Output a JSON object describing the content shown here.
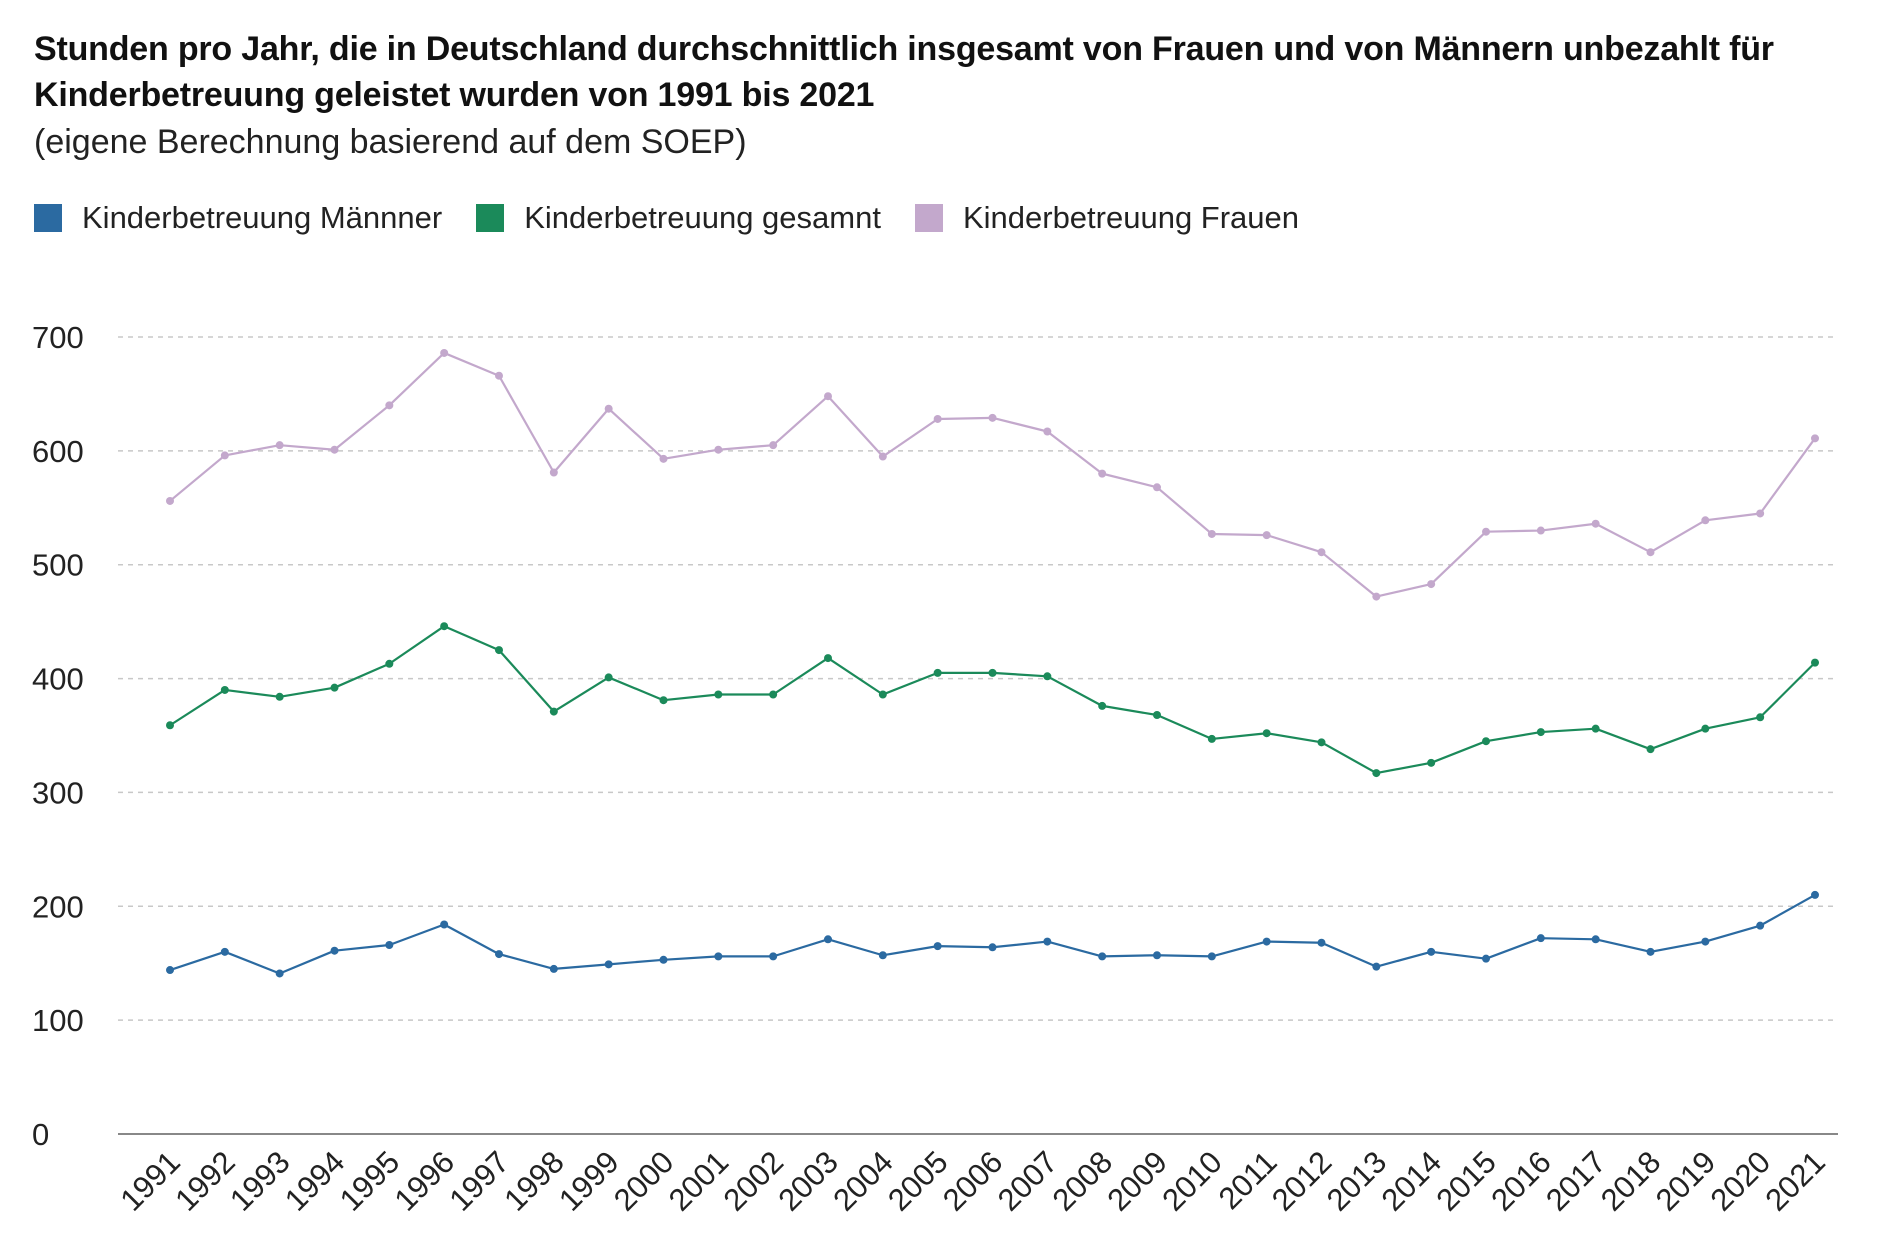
{
  "title": "Stunden pro Jahr, die in Deutschland durchschnittlich insgesamt von Frauen und von Männern unbezahlt für Kinderbetreuung geleistet wurden von 1991 bis 2021",
  "subtitle": "(eigene Berechnung basierend auf dem SOEP)",
  "colors": {
    "maenner": "#2b6aa1",
    "gesamt": "#1b8a5a",
    "frauen": "#c3a8cc",
    "grid": "#c8c8c8",
    "axis": "#888888"
  },
  "legend": [
    {
      "label": "Kinderbetreuung Männner",
      "color": "#2b6aa1"
    },
    {
      "label": "Kinderbetreuung gesamnt",
      "color": "#1b8a5a"
    },
    {
      "label": "Kinderbetreuung Frauen",
      "color": "#c3a8cc"
    }
  ],
  "chart_data": {
    "type": "line",
    "title": "Stunden pro Jahr, die in Deutschland durchschnittlich insgesamt von Frauen und von Männern unbezahlt für Kinderbetreuung geleistet wurden von 1991 bis 2021",
    "subtitle": "(eigene Berechnung basierend auf dem SOEP)",
    "xlabel": "",
    "ylabel": "",
    "ylim": [
      0,
      700
    ],
    "yticks": [
      0,
      100,
      200,
      300,
      400,
      500,
      600,
      700
    ],
    "grid": true,
    "legend_position": "top-left",
    "categories": [
      "1991",
      "1992",
      "1993",
      "1994",
      "1995",
      "1996",
      "1997",
      "1998",
      "1999",
      "2000",
      "2001",
      "2002",
      "2003",
      "2004",
      "2005",
      "2006",
      "2007",
      "2008",
      "2009",
      "2010",
      "2011",
      "2012",
      "2013",
      "2014",
      "2015",
      "2016",
      "2017",
      "2018",
      "2019",
      "2020",
      "2021"
    ],
    "series": [
      {
        "name": "Kinderbetreuung Männner",
        "color": "#2b6aa1",
        "values": [
          144,
          160,
          141,
          161,
          166,
          184,
          158,
          145,
          149,
          153,
          156,
          156,
          171,
          157,
          165,
          164,
          169,
          156,
          157,
          156,
          169,
          168,
          147,
          160,
          154,
          172,
          171,
          160,
          169,
          183,
          210
        ]
      },
      {
        "name": "Kinderbetreuung gesamnt",
        "color": "#1b8a5a",
        "values": [
          359,
          390,
          384,
          392,
          413,
          446,
          425,
          371,
          401,
          381,
          386,
          386,
          418,
          386,
          405,
          405,
          402,
          376,
          368,
          347,
          352,
          344,
          317,
          326,
          345,
          353,
          356,
          338,
          356,
          366,
          414
        ]
      },
      {
        "name": "Kinderbetreuung Frauen",
        "color": "#c3a8cc",
        "values": [
          556,
          596,
          605,
          601,
          640,
          686,
          666,
          581,
          637,
          593,
          601,
          605,
          648,
          595,
          628,
          629,
          617,
          580,
          568,
          527,
          526,
          511,
          472,
          483,
          529,
          530,
          536,
          511,
          539,
          545,
          611
        ]
      }
    ]
  }
}
